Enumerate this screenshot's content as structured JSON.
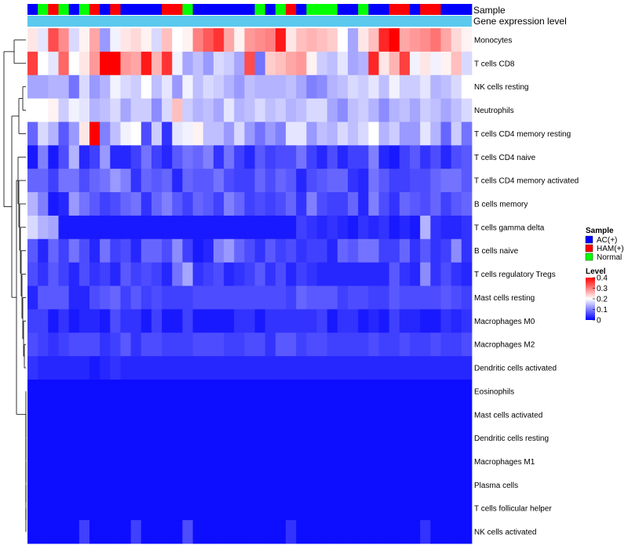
{
  "chart_data": {
    "type": "heatmap",
    "annotation_tracks": [
      "Sample",
      "Gene expression level"
    ],
    "rows": [
      "Monocytes",
      "T cells CD8",
      "NK cells resting",
      "Neutrophils",
      "T cells CD4 memory resting",
      "T cells CD4 naive",
      "T cells CD4 memory activated",
      "B cells memory",
      "T cells gamma delta",
      "B cells naive",
      "T cells regulatory  Tregs",
      "Mast cells resting",
      "Macrophages M0",
      "Macrophages M2",
      "Dendritic cells activated",
      "Eosinophils",
      "Mast cells activated",
      "Dendritic cells resting",
      "Macrophages M1",
      "Plasma cells",
      "T cells follicular helper",
      "NK cells activated"
    ],
    "sample_groups": [
      "AC",
      "N",
      "HAM",
      "N",
      "AC",
      "N",
      "HAM",
      "AC",
      "HAM",
      "AC",
      "AC",
      "AC",
      "AC",
      "HAM",
      "HAM",
      "N",
      "AC",
      "AC",
      "AC",
      "AC",
      "AC",
      "AC",
      "N",
      "AC",
      "N",
      "HAM",
      "AC",
      "N",
      "N",
      "N",
      "AC",
      "AC",
      "N",
      "AC",
      "AC",
      "HAM",
      "HAM",
      "AC",
      "HAM",
      "HAM",
      "AC",
      "AC",
      "AC"
    ],
    "matrix": [
      [
        0.22,
        0.18,
        0.34,
        0.29,
        0.17,
        0.21,
        0.27,
        0.12,
        0.19,
        0.22,
        0.23,
        0.21,
        0.17,
        0.25,
        0.2,
        0.21,
        0.3,
        0.33,
        0.36,
        0.27,
        0.21,
        0.28,
        0.29,
        0.3,
        0.38,
        0.22,
        0.25,
        0.26,
        0.25,
        0.24,
        0.2,
        0.13,
        0.22,
        0.25,
        0.37,
        0.4,
        0.27,
        0.28,
        0.29,
        0.31,
        0.27,
        0.23,
        0.21
      ],
      [
        0.35,
        0.2,
        0.18,
        0.32,
        0.2,
        0.22,
        0.28,
        0.4,
        0.4,
        0.28,
        0.27,
        0.38,
        0.26,
        0.36,
        0.19,
        0.13,
        0.15,
        0.12,
        0.17,
        0.16,
        0.13,
        0.34,
        0.09,
        0.24,
        0.25,
        0.27,
        0.28,
        0.21,
        0.16,
        0.15,
        0.18,
        0.13,
        0.14,
        0.37,
        0.22,
        0.26,
        0.35,
        0.19,
        0.22,
        0.19,
        0.21,
        0.25,
        0.17
      ],
      [
        0.13,
        0.13,
        0.14,
        0.14,
        0.09,
        0.17,
        0.12,
        0.14,
        0.19,
        0.17,
        0.16,
        0.2,
        0.15,
        0.18,
        0.12,
        0.19,
        0.15,
        0.17,
        0.16,
        0.14,
        0.12,
        0.15,
        0.14,
        0.14,
        0.14,
        0.15,
        0.13,
        0.1,
        0.11,
        0.14,
        0.15,
        0.17,
        0.16,
        0.18,
        0.15,
        0.19,
        0.16,
        0.16,
        0.18,
        0.14,
        0.15,
        0.17,
        0.2
      ],
      [
        0.2,
        0.2,
        0.21,
        0.16,
        0.19,
        0.18,
        0.14,
        0.15,
        0.17,
        0.13,
        0.16,
        0.16,
        0.11,
        0.17,
        0.25,
        0.16,
        0.14,
        0.15,
        0.13,
        0.18,
        0.14,
        0.15,
        0.17,
        0.15,
        0.16,
        0.14,
        0.15,
        0.17,
        0.17,
        0.13,
        0.11,
        0.15,
        0.16,
        0.14,
        0.11,
        0.14,
        0.15,
        0.13,
        0.16,
        0.15,
        0.13,
        0.15,
        0.17
      ],
      [
        0.08,
        0.17,
        0.14,
        0.07,
        0.12,
        0.22,
        0.4,
        0.1,
        0.15,
        0.19,
        0.2,
        0.06,
        0.16,
        0.04,
        0.18,
        0.19,
        0.21,
        0.15,
        0.15,
        0.12,
        0.17,
        0.12,
        0.09,
        0.12,
        0.1,
        0.18,
        0.18,
        0.12,
        0.15,
        0.14,
        0.17,
        0.15,
        0.17,
        0.2,
        0.14,
        0.16,
        0.12,
        0.12,
        0.18,
        0.14,
        0.08,
        0.16,
        0.09
      ],
      [
        0.02,
        0.1,
        0.02,
        0.06,
        0.14,
        0.03,
        0.05,
        0.12,
        0.03,
        0.03,
        0.05,
        0.09,
        0.05,
        0.03,
        0.07,
        0.09,
        0.08,
        0.1,
        0.04,
        0.09,
        0.05,
        0.03,
        0.07,
        0.05,
        0.06,
        0.06,
        0.09,
        0.05,
        0.03,
        0.06,
        0.03,
        0.05,
        0.05,
        0.1,
        0.03,
        0.02,
        0.05,
        0.07,
        0.04,
        0.06,
        0.03,
        0.06,
        0.07
      ],
      [
        0.08,
        0.08,
        0.05,
        0.09,
        0.09,
        0.06,
        0.08,
        0.09,
        0.12,
        0.1,
        0.04,
        0.08,
        0.07,
        0.08,
        0.03,
        0.08,
        0.07,
        0.07,
        0.09,
        0.06,
        0.05,
        0.05,
        0.08,
        0.06,
        0.08,
        0.07,
        0.03,
        0.06,
        0.07,
        0.08,
        0.08,
        0.04,
        0.03,
        0.09,
        0.07,
        0.05,
        0.05,
        0.06,
        0.06,
        0.08,
        0.09,
        0.09,
        0.07
      ],
      [
        0.14,
        0.1,
        0.02,
        0.03,
        0.12,
        0.09,
        0.07,
        0.05,
        0.06,
        0.08,
        0.09,
        0.04,
        0.08,
        0.1,
        0.07,
        0.05,
        0.08,
        0.07,
        0.05,
        0.1,
        0.08,
        0.05,
        0.06,
        0.05,
        0.06,
        0.08,
        0.04,
        0.1,
        0.06,
        0.05,
        0.05,
        0.08,
        0.03,
        0.1,
        0.06,
        0.04,
        0.08,
        0.07,
        0.06,
        0.08,
        0.05,
        0.07,
        0.08
      ],
      [
        0.17,
        0.14,
        0.13,
        0.02,
        0.02,
        0.02,
        0.02,
        0.02,
        0.02,
        0.02,
        0.02,
        0.02,
        0.02,
        0.02,
        0.02,
        0.02,
        0.02,
        0.02,
        0.02,
        0.02,
        0.02,
        0.02,
        0.02,
        0.02,
        0.02,
        0.02,
        0.05,
        0.04,
        0.03,
        0.04,
        0.03,
        0.02,
        0.04,
        0.03,
        0.04,
        0.02,
        0.03,
        0.02,
        0.14,
        0.04,
        0.03,
        0.03,
        0.04
      ],
      [
        0.07,
        0.03,
        0.08,
        0.05,
        0.09,
        0.06,
        0.03,
        0.09,
        0.05,
        0.06,
        0.03,
        0.08,
        0.08,
        0.06,
        0.11,
        0.05,
        0.02,
        0.03,
        0.1,
        0.12,
        0.08,
        0.06,
        0.04,
        0.07,
        0.05,
        0.06,
        0.04,
        0.05,
        0.05,
        0.03,
        0.08,
        0.07,
        0.09,
        0.09,
        0.05,
        0.05,
        0.08,
        0.04,
        0.07,
        0.04,
        0.05,
        0.11,
        0.04
      ],
      [
        0.06,
        0.04,
        0.07,
        0.05,
        0.03,
        0.06,
        0.04,
        0.05,
        0.03,
        0.07,
        0.05,
        0.06,
        0.05,
        0.03,
        0.09,
        0.13,
        0.04,
        0.05,
        0.06,
        0.03,
        0.04,
        0.05,
        0.07,
        0.04,
        0.06,
        0.03,
        0.05,
        0.04,
        0.03,
        0.03,
        0.03,
        0.03,
        0.03,
        0.03,
        0.03,
        0.07,
        0.04,
        0.03,
        0.11,
        0.04,
        0.06,
        0.04,
        0.03
      ],
      [
        0.03,
        0.07,
        0.07,
        0.07,
        0.03,
        0.03,
        0.06,
        0.07,
        0.08,
        0.05,
        0.07,
        0.05,
        0.06,
        0.05,
        0.05,
        0.05,
        0.06,
        0.06,
        0.06,
        0.06,
        0.06,
        0.06,
        0.06,
        0.06,
        0.06,
        0.05,
        0.08,
        0.07,
        0.07,
        0.07,
        0.05,
        0.06,
        0.06,
        0.05,
        0.05,
        0.07,
        0.06,
        0.06,
        0.06,
        0.06,
        0.07,
        0.06,
        0.05
      ],
      [
        0.05,
        0.05,
        0.02,
        0.04,
        0.02,
        0.03,
        0.03,
        0.02,
        0.06,
        0.04,
        0.04,
        0.02,
        0.05,
        0.02,
        0.02,
        0.05,
        0.02,
        0.02,
        0.02,
        0.02,
        0.04,
        0.04,
        0.02,
        0.04,
        0.04,
        0.04,
        0.04,
        0.04,
        0.05,
        0.02,
        0.04,
        0.04,
        0.02,
        0.03,
        0.02,
        0.05,
        0.03,
        0.03,
        0.02,
        0.02,
        0.04,
        0.03,
        0.04
      ],
      [
        0.06,
        0.05,
        0.04,
        0.05,
        0.06,
        0.06,
        0.06,
        0.04,
        0.05,
        0.07,
        0.04,
        0.06,
        0.06,
        0.05,
        0.05,
        0.05,
        0.06,
        0.06,
        0.06,
        0.05,
        0.05,
        0.06,
        0.06,
        0.04,
        0.07,
        0.07,
        0.05,
        0.06,
        0.06,
        0.05,
        0.05,
        0.05,
        0.05,
        0.06,
        0.05,
        0.05,
        0.06,
        0.05,
        0.05,
        0.06,
        0.05,
        0.05,
        0.06
      ],
      [
        0.04,
        0.03,
        0.03,
        0.03,
        0.03,
        0.03,
        0.02,
        0.03,
        0.04,
        0.03,
        0.03,
        0.03,
        0.03,
        0.03,
        0.03,
        0.03,
        0.03,
        0.03,
        0.03,
        0.03,
        0.03,
        0.03,
        0.03,
        0.03,
        0.03,
        0.03,
        0.03,
        0.03,
        0.03,
        0.03,
        0.03,
        0.03,
        0.03,
        0.03,
        0.03,
        0.03,
        0.03,
        0.03,
        0.03,
        0.03,
        0.03,
        0.03,
        0.03
      ],
      [
        0.01,
        0.01,
        0.01,
        0.01,
        0.01,
        0.01,
        0.01,
        0.01,
        0.01,
        0.01,
        0.01,
        0.01,
        0.01,
        0.01,
        0.01,
        0.01,
        0.01,
        0.01,
        0.01,
        0.01,
        0.01,
        0.01,
        0.01,
        0.01,
        0.01,
        0.01,
        0.01,
        0.01,
        0.01,
        0.01,
        0.01,
        0.01,
        0.01,
        0.01,
        0.01,
        0.01,
        0.01,
        0.01,
        0.01,
        0.01,
        0.01,
        0.01,
        0.01
      ],
      [
        0.01,
        0.01,
        0.01,
        0.01,
        0.01,
        0.01,
        0.01,
        0.01,
        0.01,
        0.01,
        0.01,
        0.01,
        0.01,
        0.01,
        0.01,
        0.01,
        0.01,
        0.01,
        0.01,
        0.01,
        0.01,
        0.01,
        0.01,
        0.01,
        0.01,
        0.01,
        0.01,
        0.01,
        0.01,
        0.01,
        0.01,
        0.01,
        0.01,
        0.01,
        0.01,
        0.01,
        0.01,
        0.01,
        0.01,
        0.01,
        0.01,
        0.01,
        0.01
      ],
      [
        0.01,
        0.01,
        0.01,
        0.01,
        0.01,
        0.01,
        0.01,
        0.01,
        0.01,
        0.01,
        0.01,
        0.01,
        0.01,
        0.01,
        0.01,
        0.01,
        0.01,
        0.01,
        0.01,
        0.01,
        0.01,
        0.01,
        0.01,
        0.01,
        0.01,
        0.01,
        0.01,
        0.01,
        0.01,
        0.01,
        0.01,
        0.01,
        0.01,
        0.01,
        0.01,
        0.01,
        0.01,
        0.01,
        0.01,
        0.01,
        0.01,
        0.01,
        0.01
      ],
      [
        0.01,
        0.01,
        0.01,
        0.01,
        0.01,
        0.01,
        0.01,
        0.01,
        0.01,
        0.01,
        0.01,
        0.01,
        0.01,
        0.01,
        0.01,
        0.01,
        0.01,
        0.01,
        0.01,
        0.01,
        0.01,
        0.01,
        0.01,
        0.01,
        0.01,
        0.01,
        0.01,
        0.01,
        0.01,
        0.01,
        0.01,
        0.01,
        0.01,
        0.01,
        0.01,
        0.01,
        0.01,
        0.01,
        0.01,
        0.01,
        0.01,
        0.01,
        0.01
      ],
      [
        0.01,
        0.01,
        0.01,
        0.01,
        0.01,
        0.01,
        0.01,
        0.01,
        0.01,
        0.01,
        0.01,
        0.01,
        0.01,
        0.01,
        0.01,
        0.01,
        0.01,
        0.01,
        0.01,
        0.01,
        0.01,
        0.01,
        0.01,
        0.01,
        0.01,
        0.01,
        0.01,
        0.01,
        0.01,
        0.01,
        0.01,
        0.01,
        0.01,
        0.01,
        0.01,
        0.01,
        0.01,
        0.01,
        0.01,
        0.01,
        0.01,
        0.01,
        0.01
      ],
      [
        0.01,
        0.01,
        0.01,
        0.01,
        0.01,
        0.01,
        0.01,
        0.01,
        0.01,
        0.01,
        0.01,
        0.01,
        0.01,
        0.01,
        0.01,
        0.01,
        0.01,
        0.01,
        0.01,
        0.01,
        0.01,
        0.01,
        0.01,
        0.01,
        0.01,
        0.01,
        0.01,
        0.01,
        0.01,
        0.01,
        0.01,
        0.01,
        0.01,
        0.01,
        0.01,
        0.01,
        0.01,
        0.01,
        0.01,
        0.01,
        0.01,
        0.01,
        0.01
      ],
      [
        0.01,
        0.01,
        0.01,
        0.01,
        0.01,
        0.05,
        0.01,
        0.01,
        0.01,
        0.01,
        0.05,
        0.01,
        0.01,
        0.01,
        0.01,
        0.06,
        0.01,
        0.01,
        0.01,
        0.01,
        0.01,
        0.01,
        0.01,
        0.01,
        0.01,
        0.04,
        0.01,
        0.01,
        0.01,
        0.01,
        0.01,
        0.01,
        0.01,
        0.01,
        0.01,
        0.01,
        0.01,
        0.01,
        0.04,
        0.01,
        0.01,
        0.01,
        0.01
      ]
    ],
    "color_scale": {
      "min": 0,
      "mid": 0.2,
      "max": 0.4,
      "low": "#0000ff",
      "middle": "#ffffff",
      "high": "#ff0000"
    },
    "legend_sample": {
      "title": "Sample",
      "entries": [
        {
          "key": "AC",
          "label": "AC(+)",
          "color": "#0000ff"
        },
        {
          "key": "HAM",
          "label": "HAM(+)",
          "color": "#ff0000"
        },
        {
          "key": "N",
          "label": "Normal",
          "color": "#00ff00"
        }
      ]
    },
    "legend_level": {
      "title": "Level",
      "ticks": [
        {
          "value": 0.4,
          "label": "0.4"
        },
        {
          "value": 0.3,
          "label": "0.3"
        },
        {
          "value": 0.2,
          "label": "0.2"
        },
        {
          "value": 0.1,
          "label": "0.1"
        },
        {
          "value": 0,
          "label": "0"
        }
      ]
    },
    "expression_bar_color": "#5bc8ee"
  }
}
